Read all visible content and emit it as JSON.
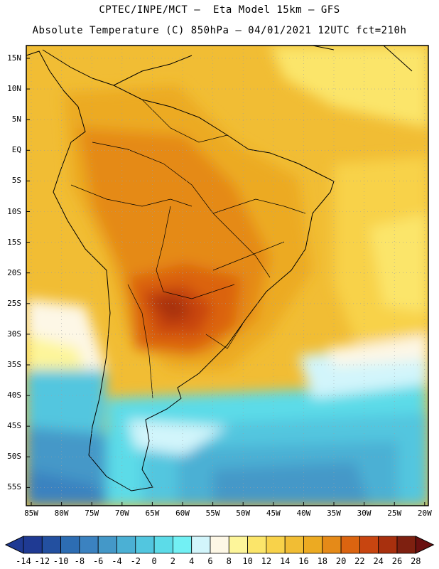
{
  "header": {
    "line1": "CPTEC/INPE/MCT –  Eta Model 15km – GFS",
    "line2": "Absolute Temperature (C) 850hPa – 04/01/2021 12UTC fct=210h"
  },
  "map": {
    "lat_labels": [
      "15N",
      "10N",
      "5N",
      "EQ",
      "5S",
      "10S",
      "15S",
      "20S",
      "25S",
      "30S",
      "35S",
      "40S",
      "45S",
      "50S",
      "55S"
    ],
    "lon_labels": [
      "85W",
      "80W",
      "75W",
      "70W",
      "65W",
      "60W",
      "55W",
      "50W",
      "45W",
      "40W",
      "35W",
      "30W",
      "25W",
      "20W"
    ]
  },
  "colorbar": {
    "labels": [
      "-14",
      "-12",
      "-10",
      "-8",
      "-6",
      "-4",
      "-2",
      "0",
      "2",
      "4",
      "6",
      "8",
      "10",
      "12",
      "14",
      "16",
      "18",
      "20",
      "22",
      "24",
      "26",
      "28"
    ],
    "colors": [
      "#1f3a93",
      "#2350a0",
      "#2d6db3",
      "#3b82c0",
      "#4498c8",
      "#4bb0d4",
      "#52c6df",
      "#5cdbe8",
      "#72f0f4",
      "#d2f5fb",
      "#fdf7e6",
      "#fdf59a",
      "#fbe56a",
      "#f8d24a",
      "#f1bd34",
      "#ecaa22",
      "#e58a18",
      "#db6410",
      "#c84510",
      "#a8300e",
      "#7e2010"
    ]
  }
}
